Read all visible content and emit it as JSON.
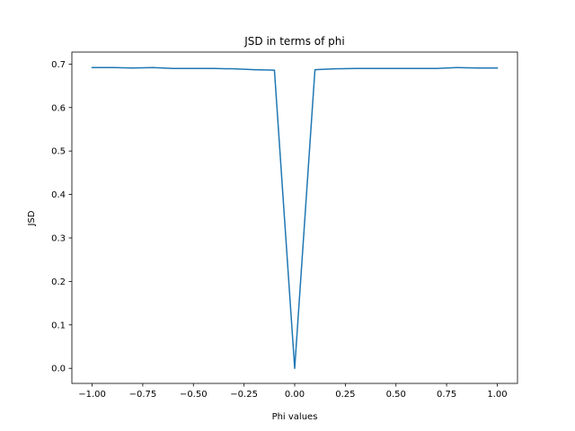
{
  "chart_data": {
    "type": "line",
    "title": "JSD in terms of phi",
    "xlabel": "Phi values",
    "ylabel": "JSD",
    "xlim": [
      -1.1,
      1.1
    ],
    "ylim": [
      -0.0347,
      0.7276
    ],
    "grid": false,
    "legend": "none",
    "x_ticks": [
      -1.0,
      -0.75,
      -0.5,
      -0.25,
      0.0,
      0.25,
      0.5,
      0.75,
      1.0
    ],
    "x_tick_labels": [
      "−1.00",
      "−0.75",
      "−0.50",
      "−0.25",
      "0.00",
      "0.25",
      "0.50",
      "0.75",
      "1.00"
    ],
    "y_ticks": [
      0.0,
      0.1,
      0.2,
      0.3,
      0.4,
      0.5,
      0.6,
      0.7
    ],
    "y_tick_labels": [
      "0.0",
      "0.1",
      "0.2",
      "0.3",
      "0.4",
      "0.5",
      "0.6",
      "0.7"
    ],
    "series": [
      {
        "color": "#1f77b4",
        "x": [
          -1.0,
          -0.9,
          -0.8,
          -0.7,
          -0.6,
          -0.5,
          -0.4,
          -0.3,
          -0.2,
          -0.1,
          0.0,
          0.1,
          0.2,
          0.3,
          0.4,
          0.5,
          0.6,
          0.7,
          0.8,
          0.9,
          1.0
        ],
        "y": [
          0.692,
          0.692,
          0.691,
          0.692,
          0.69,
          0.69,
          0.69,
          0.689,
          0.687,
          0.686,
          0.0,
          0.687,
          0.689,
          0.69,
          0.69,
          0.69,
          0.69,
          0.69,
          0.692,
          0.691,
          0.691
        ]
      }
    ]
  }
}
